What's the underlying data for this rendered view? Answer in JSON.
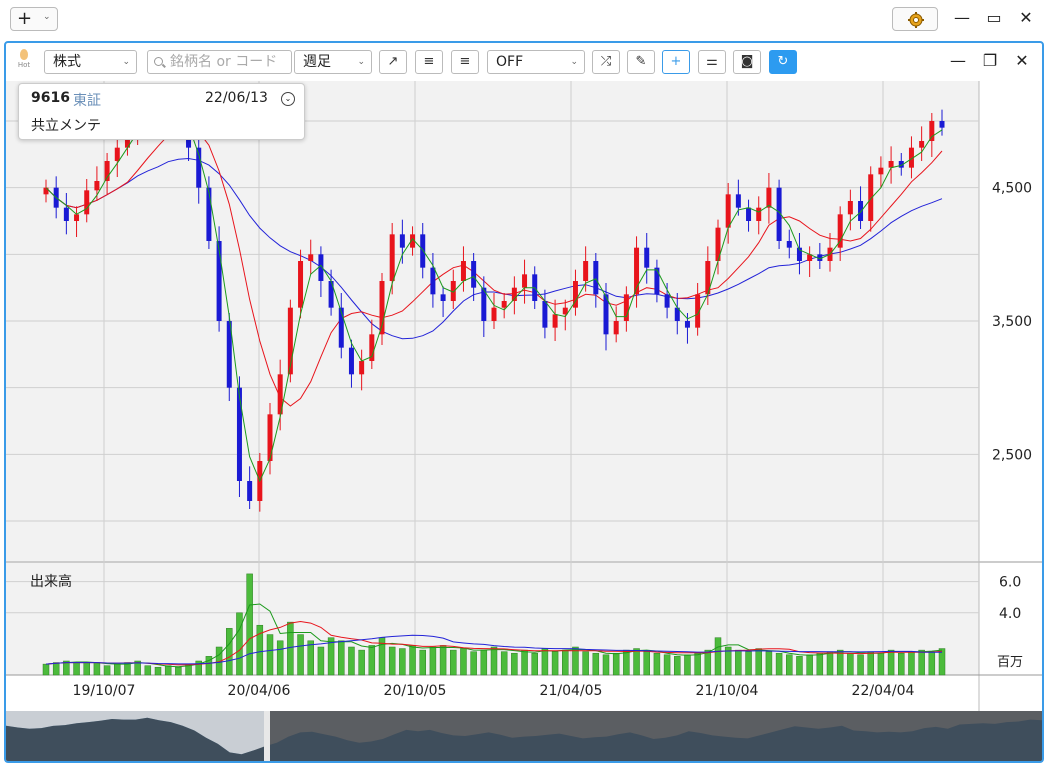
{
  "app": {
    "new_label": "+",
    "window_controls": [
      "minimize-icon",
      "maximize-icon",
      "close-icon"
    ]
  },
  "toolbar": {
    "hot_label": "Hot",
    "market_select": "株式",
    "search_placeholder": "銘柄名 or コード",
    "period_select": "週足",
    "indicator_select": "OFF",
    "buttons": [
      "trendline-icon",
      "align-left-icon",
      "align-right-icon",
      "shuffle-icon",
      "pencil-icon",
      "crosshair-icon",
      "sliders-icon",
      "camera-icon",
      "refresh-icon"
    ]
  },
  "info": {
    "code": "9616",
    "exchange": "東証",
    "date": "22/06/13",
    "name": "共立メンテ"
  },
  "colors": {
    "up": "#e8141c",
    "down": "#1a1ad4",
    "ma_short": "#1c9a1c",
    "ma_mid": "#e8141c",
    "ma_long": "#2323d8",
    "volume": "#4cbb3c",
    "accent": "#3a9be8"
  },
  "chart_data": {
    "type": "candlestick",
    "price_axis": {
      "ticks": [
        "4,500",
        "3,500",
        "2,500"
      ],
      "tick_values": [
        4500,
        3500,
        2500
      ],
      "ylim": [
        1700,
        5300
      ]
    },
    "volume_axis": {
      "label": "出来高",
      "ticks": [
        "6.0",
        "4.0"
      ],
      "tick_values": [
        6.0,
        4.0
      ],
      "unit": "百万",
      "ylim": [
        0,
        7.2
      ]
    },
    "x_axis": {
      "ticks": [
        "19/10/07",
        "20/04/06",
        "20/10/05",
        "21/04/05",
        "21/10/04",
        "22/04/04"
      ]
    },
    "price_series": [
      4500,
      4350,
      4250,
      4300,
      4480,
      4550,
      4700,
      4800,
      4900,
      5050,
      5000,
      5000,
      5150,
      4950,
      4800,
      4500,
      4100,
      3500,
      3000,
      2300,
      2150,
      2450,
      2800,
      3100,
      3600,
      3950,
      4000,
      3800,
      3600,
      3300,
      3100,
      3200,
      3400,
      3800,
      4150,
      4050,
      4150,
      3900,
      3700,
      3650,
      3800,
      3950,
      3750,
      3500,
      3600,
      3650,
      3750,
      3850,
      3650,
      3450,
      3550,
      3600,
      3800,
      3950,
      3700,
      3400,
      3500,
      3700,
      4050,
      3900,
      3700,
      3600,
      3500,
      3450,
      3700,
      3950,
      4200,
      4450,
      4350,
      4250,
      4350,
      4500,
      4100,
      4050,
      3950,
      4000,
      3950,
      4050,
      4300,
      4400,
      4250,
      4600,
      4650,
      4700,
      4650,
      4800,
      4850,
      5000,
      4950
    ],
    "volume_series": [
      0.7,
      0.8,
      0.9,
      0.8,
      0.8,
      0.8,
      0.6,
      0.7,
      0.8,
      0.9,
      0.6,
      0.5,
      0.6,
      0.5,
      0.7,
      0.9,
      1.2,
      1.8,
      3.0,
      4.0,
      6.5,
      3.2,
      2.6,
      2.2,
      3.4,
      2.6,
      2.2,
      1.8,
      2.4,
      2.2,
      1.8,
      1.6,
      1.9,
      2.4,
      1.8,
      1.7,
      1.9,
      1.6,
      1.8,
      1.9,
      1.6,
      1.7,
      1.5,
      1.6,
      1.8,
      1.5,
      1.4,
      1.6,
      1.4,
      1.7,
      1.5,
      1.6,
      1.8,
      1.5,
      1.4,
      1.3,
      1.4,
      1.6,
      1.7,
      1.5,
      1.4,
      1.3,
      1.2,
      1.3,
      1.4,
      1.6,
      2.4,
      1.8,
      1.6,
      1.5,
      1.7,
      1.5,
      1.4,
      1.3,
      1.2,
      1.3,
      1.4,
      1.5,
      1.6,
      1.4,
      1.3,
      1.5,
      1.4,
      1.6,
      1.4,
      1.5,
      1.6,
      1.5,
      1.7
    ]
  }
}
